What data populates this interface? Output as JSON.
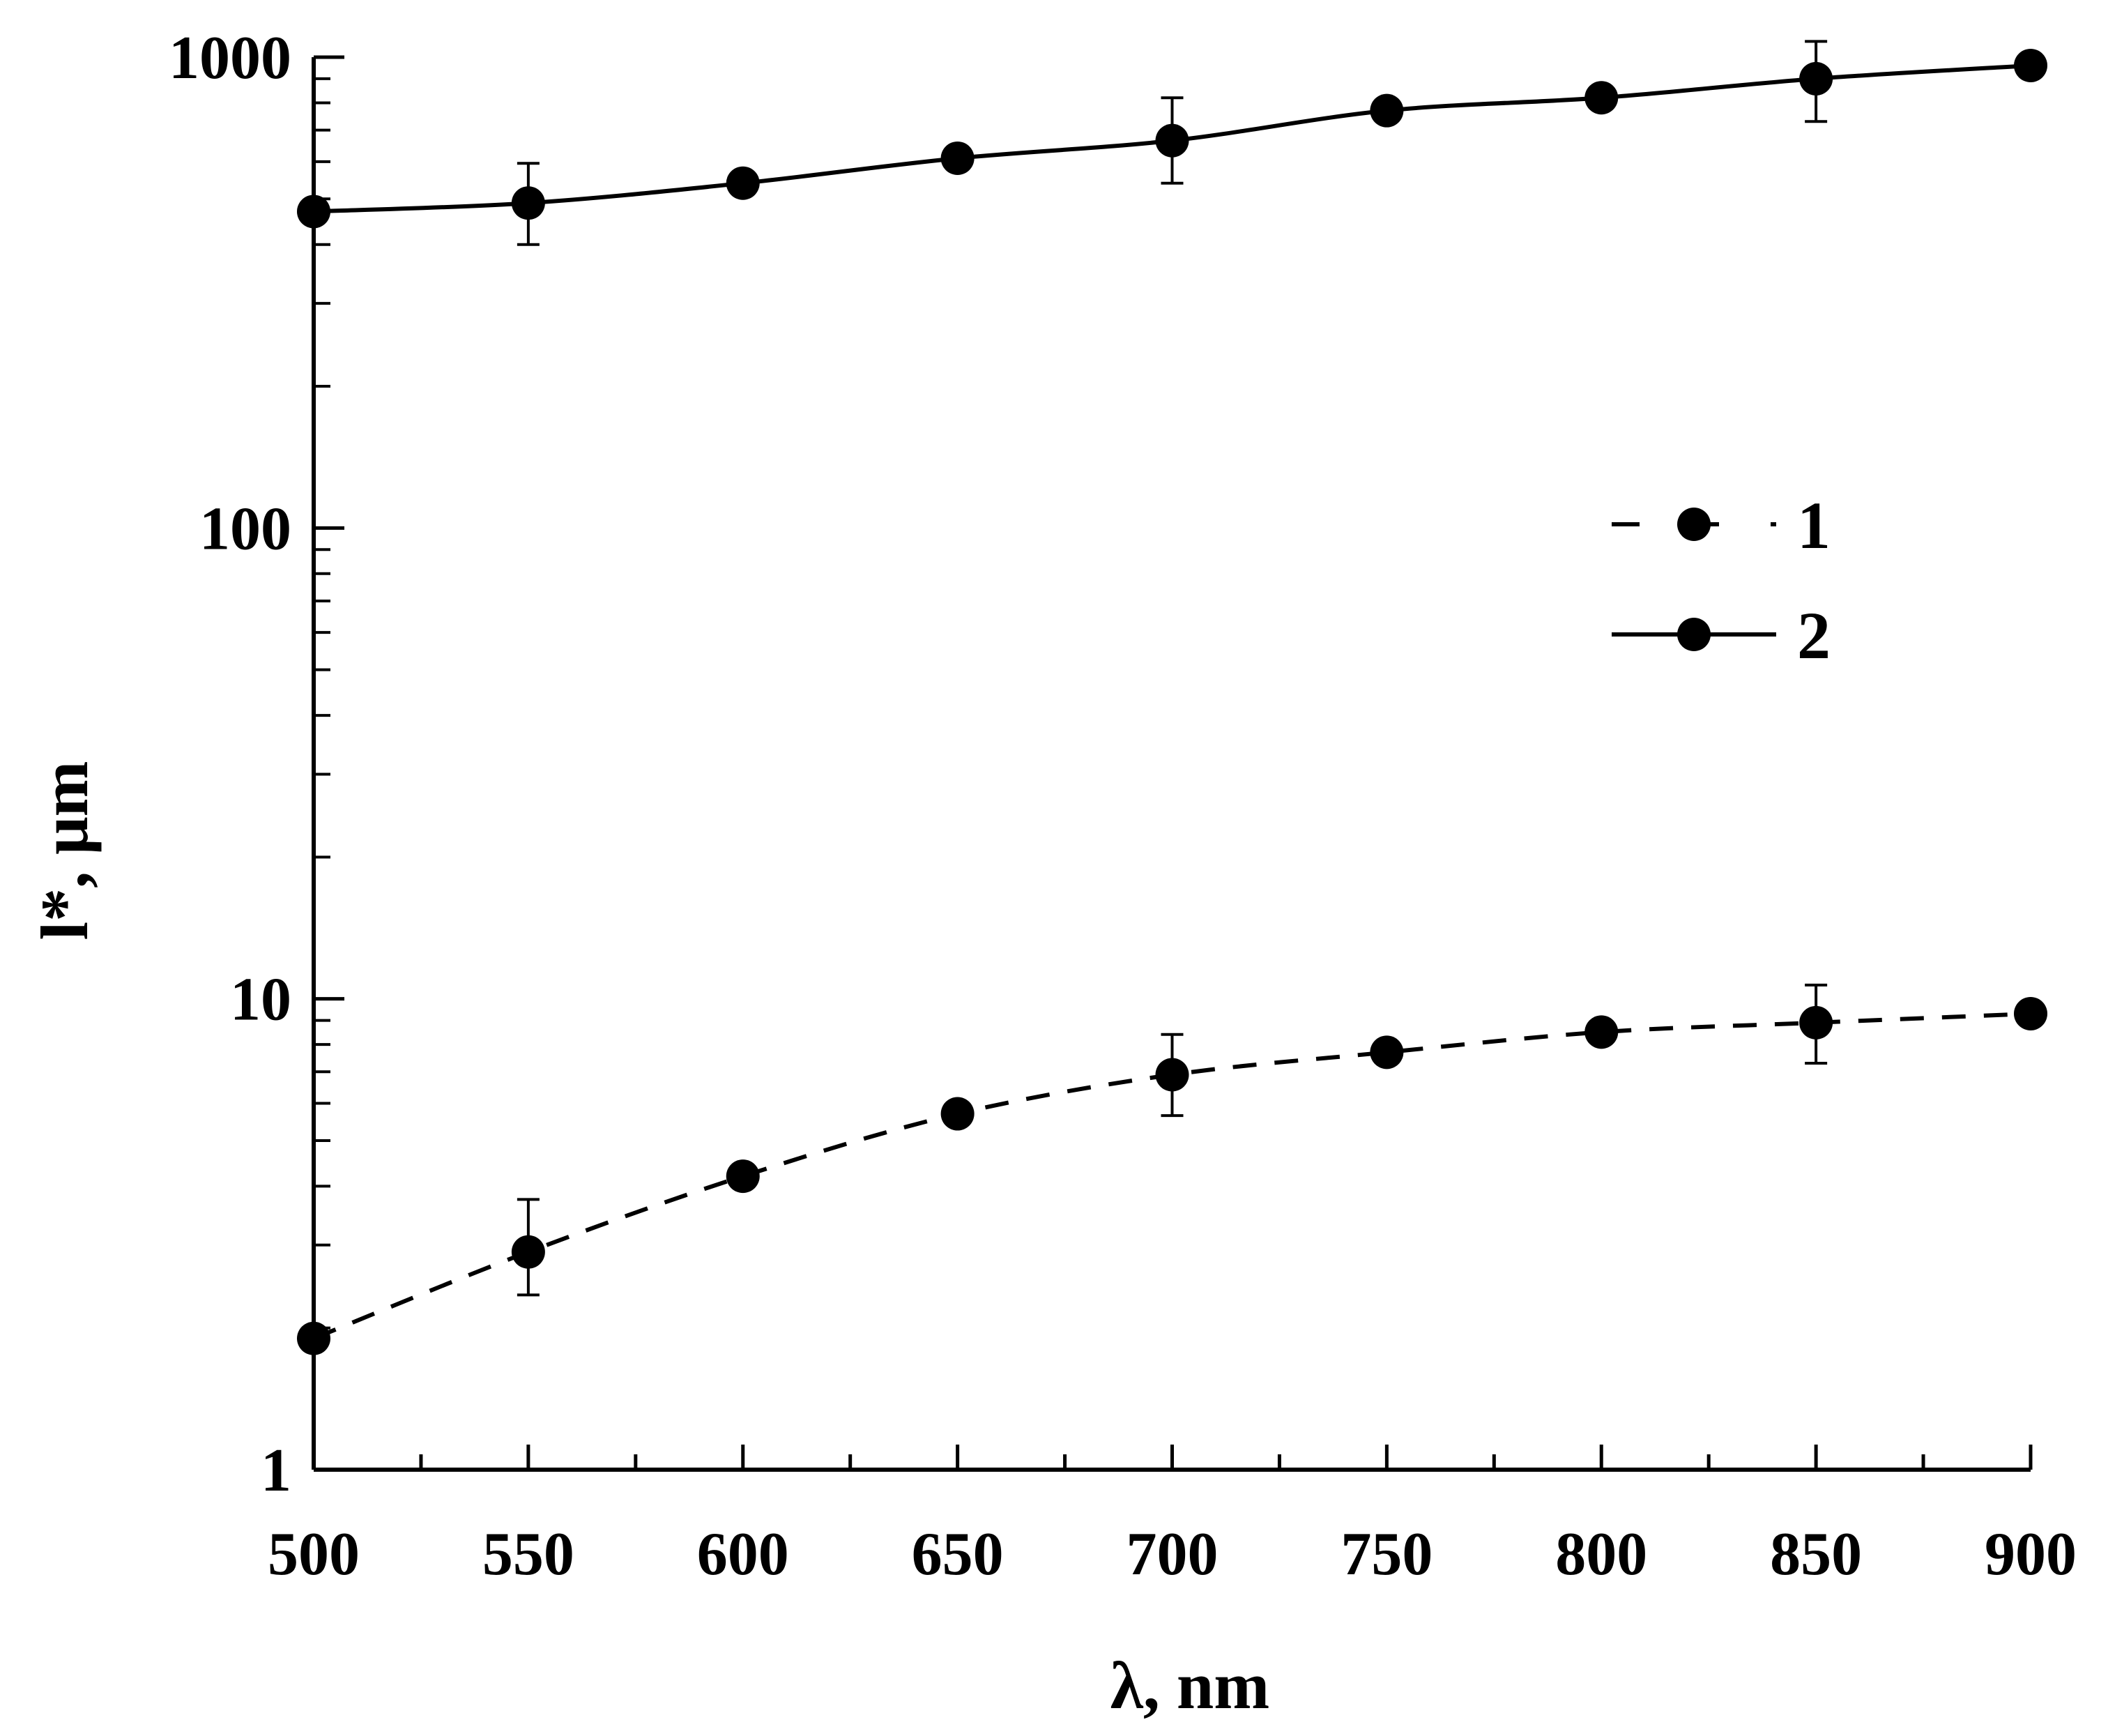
{
  "chart_data": {
    "type": "line",
    "title": "",
    "xlabel": "λ, nm",
    "ylabel": "l*, μm",
    "xlim": [
      500,
      900
    ],
    "ylim": [
      1,
      1000
    ],
    "yscale": "log",
    "grid": false,
    "legend_position": "right-center",
    "x_ticks": [
      500,
      550,
      600,
      650,
      700,
      750,
      800,
      850,
      900
    ],
    "x_tick_labels": [
      "500",
      "550",
      "600",
      "650",
      "700",
      "750",
      "800",
      "850",
      "900"
    ],
    "y_ticks": [
      1,
      10,
      100,
      1000
    ],
    "y_tick_labels": [
      "1",
      "10",
      "100",
      "1000"
    ],
    "series": [
      {
        "name": "1",
        "line_style": "dashed",
        "marker": "filled-circle",
        "color": "#000000",
        "x": [
          500,
          550,
          600,
          650,
          700,
          750,
          800,
          850,
          900
        ],
        "y": [
          1.9,
          2.9,
          4.2,
          5.7,
          6.9,
          7.7,
          8.5,
          8.9,
          9.3
        ],
        "errors": [
          {
            "x": 550,
            "low": 2.35,
            "high": 3.75
          },
          {
            "x": 700,
            "low": 5.65,
            "high": 8.4
          },
          {
            "x": 850,
            "low": 7.3,
            "high": 10.7
          }
        ]
      },
      {
        "name": "2",
        "line_style": "solid",
        "marker": "filled-circle",
        "color": "#000000",
        "x": [
          500,
          550,
          600,
          650,
          700,
          750,
          800,
          850,
          900
        ],
        "y": [
          470,
          490,
          540,
          610,
          665,
          770,
          820,
          900,
          960
        ],
        "errors": [
          {
            "x": 550,
            "low": 400,
            "high": 595
          },
          {
            "x": 700,
            "low": 540,
            "high": 820
          },
          {
            "x": 850,
            "low": 730,
            "high": 1080
          }
        ]
      }
    ]
  }
}
